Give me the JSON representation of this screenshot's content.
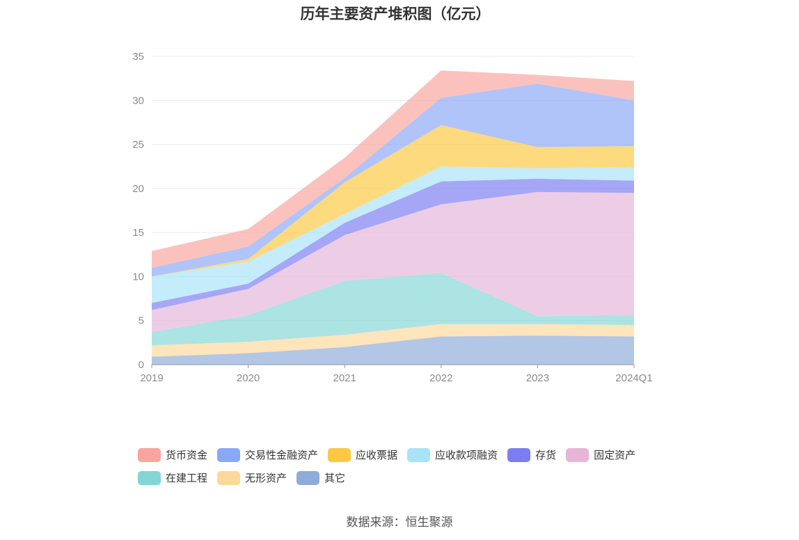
{
  "chart_data": {
    "type": "area",
    "stacked": true,
    "title": "历年主要资产堆积图（亿元）",
    "categories": [
      "2019",
      "2020",
      "2021",
      "2022",
      "2023",
      "2024Q1"
    ],
    "ylim": [
      0,
      35
    ],
    "yticks": [
      0,
      5,
      10,
      15,
      20,
      25,
      30,
      35
    ],
    "grid": true,
    "legend_position": "bottom",
    "series": [
      {
        "name": "其它",
        "color": "#8eabd9",
        "values": [
          0.9,
          1.3,
          2.0,
          3.2,
          3.3,
          3.2
        ]
      },
      {
        "name": "无形资产",
        "color": "#fdd89b",
        "values": [
          1.3,
          1.3,
          1.4,
          1.4,
          1.3,
          1.3
        ]
      },
      {
        "name": "在建工程",
        "color": "#84d6d6",
        "values": [
          1.5,
          3.0,
          6.1,
          5.8,
          0.9,
          1.1
        ]
      },
      {
        "name": "固定资产",
        "color": "#e5b6d8",
        "values": [
          2.5,
          3.0,
          5.2,
          7.8,
          14.1,
          13.9
        ]
      },
      {
        "name": "存货",
        "color": "#7b7ef2",
        "values": [
          0.8,
          0.6,
          1.4,
          2.6,
          1.5,
          1.4
        ]
      },
      {
        "name": "应收款项融资",
        "color": "#a8e3f8",
        "values": [
          3.0,
          2.5,
          1.0,
          1.7,
          1.2,
          1.5
        ]
      },
      {
        "name": "应收票据",
        "color": "#fdc842",
        "values": [
          0.0,
          0.3,
          3.6,
          4.7,
          2.4,
          2.4
        ]
      },
      {
        "name": "交易性金融资产",
        "color": "#8aa8f6",
        "values": [
          1.0,
          1.4,
          0.5,
          3.1,
          7.2,
          5.2
        ]
      },
      {
        "name": "货币资金",
        "color": "#f9a59d",
        "values": [
          1.9,
          2.0,
          2.3,
          3.1,
          1.0,
          2.2
        ]
      }
    ]
  },
  "legend_order": [
    "货币资金",
    "交易性金融资产",
    "应收票据",
    "应收款项融资",
    "存货",
    "固定资产",
    "在建工程",
    "无形资产",
    "其它"
  ],
  "source": "数据来源：恒生聚源"
}
